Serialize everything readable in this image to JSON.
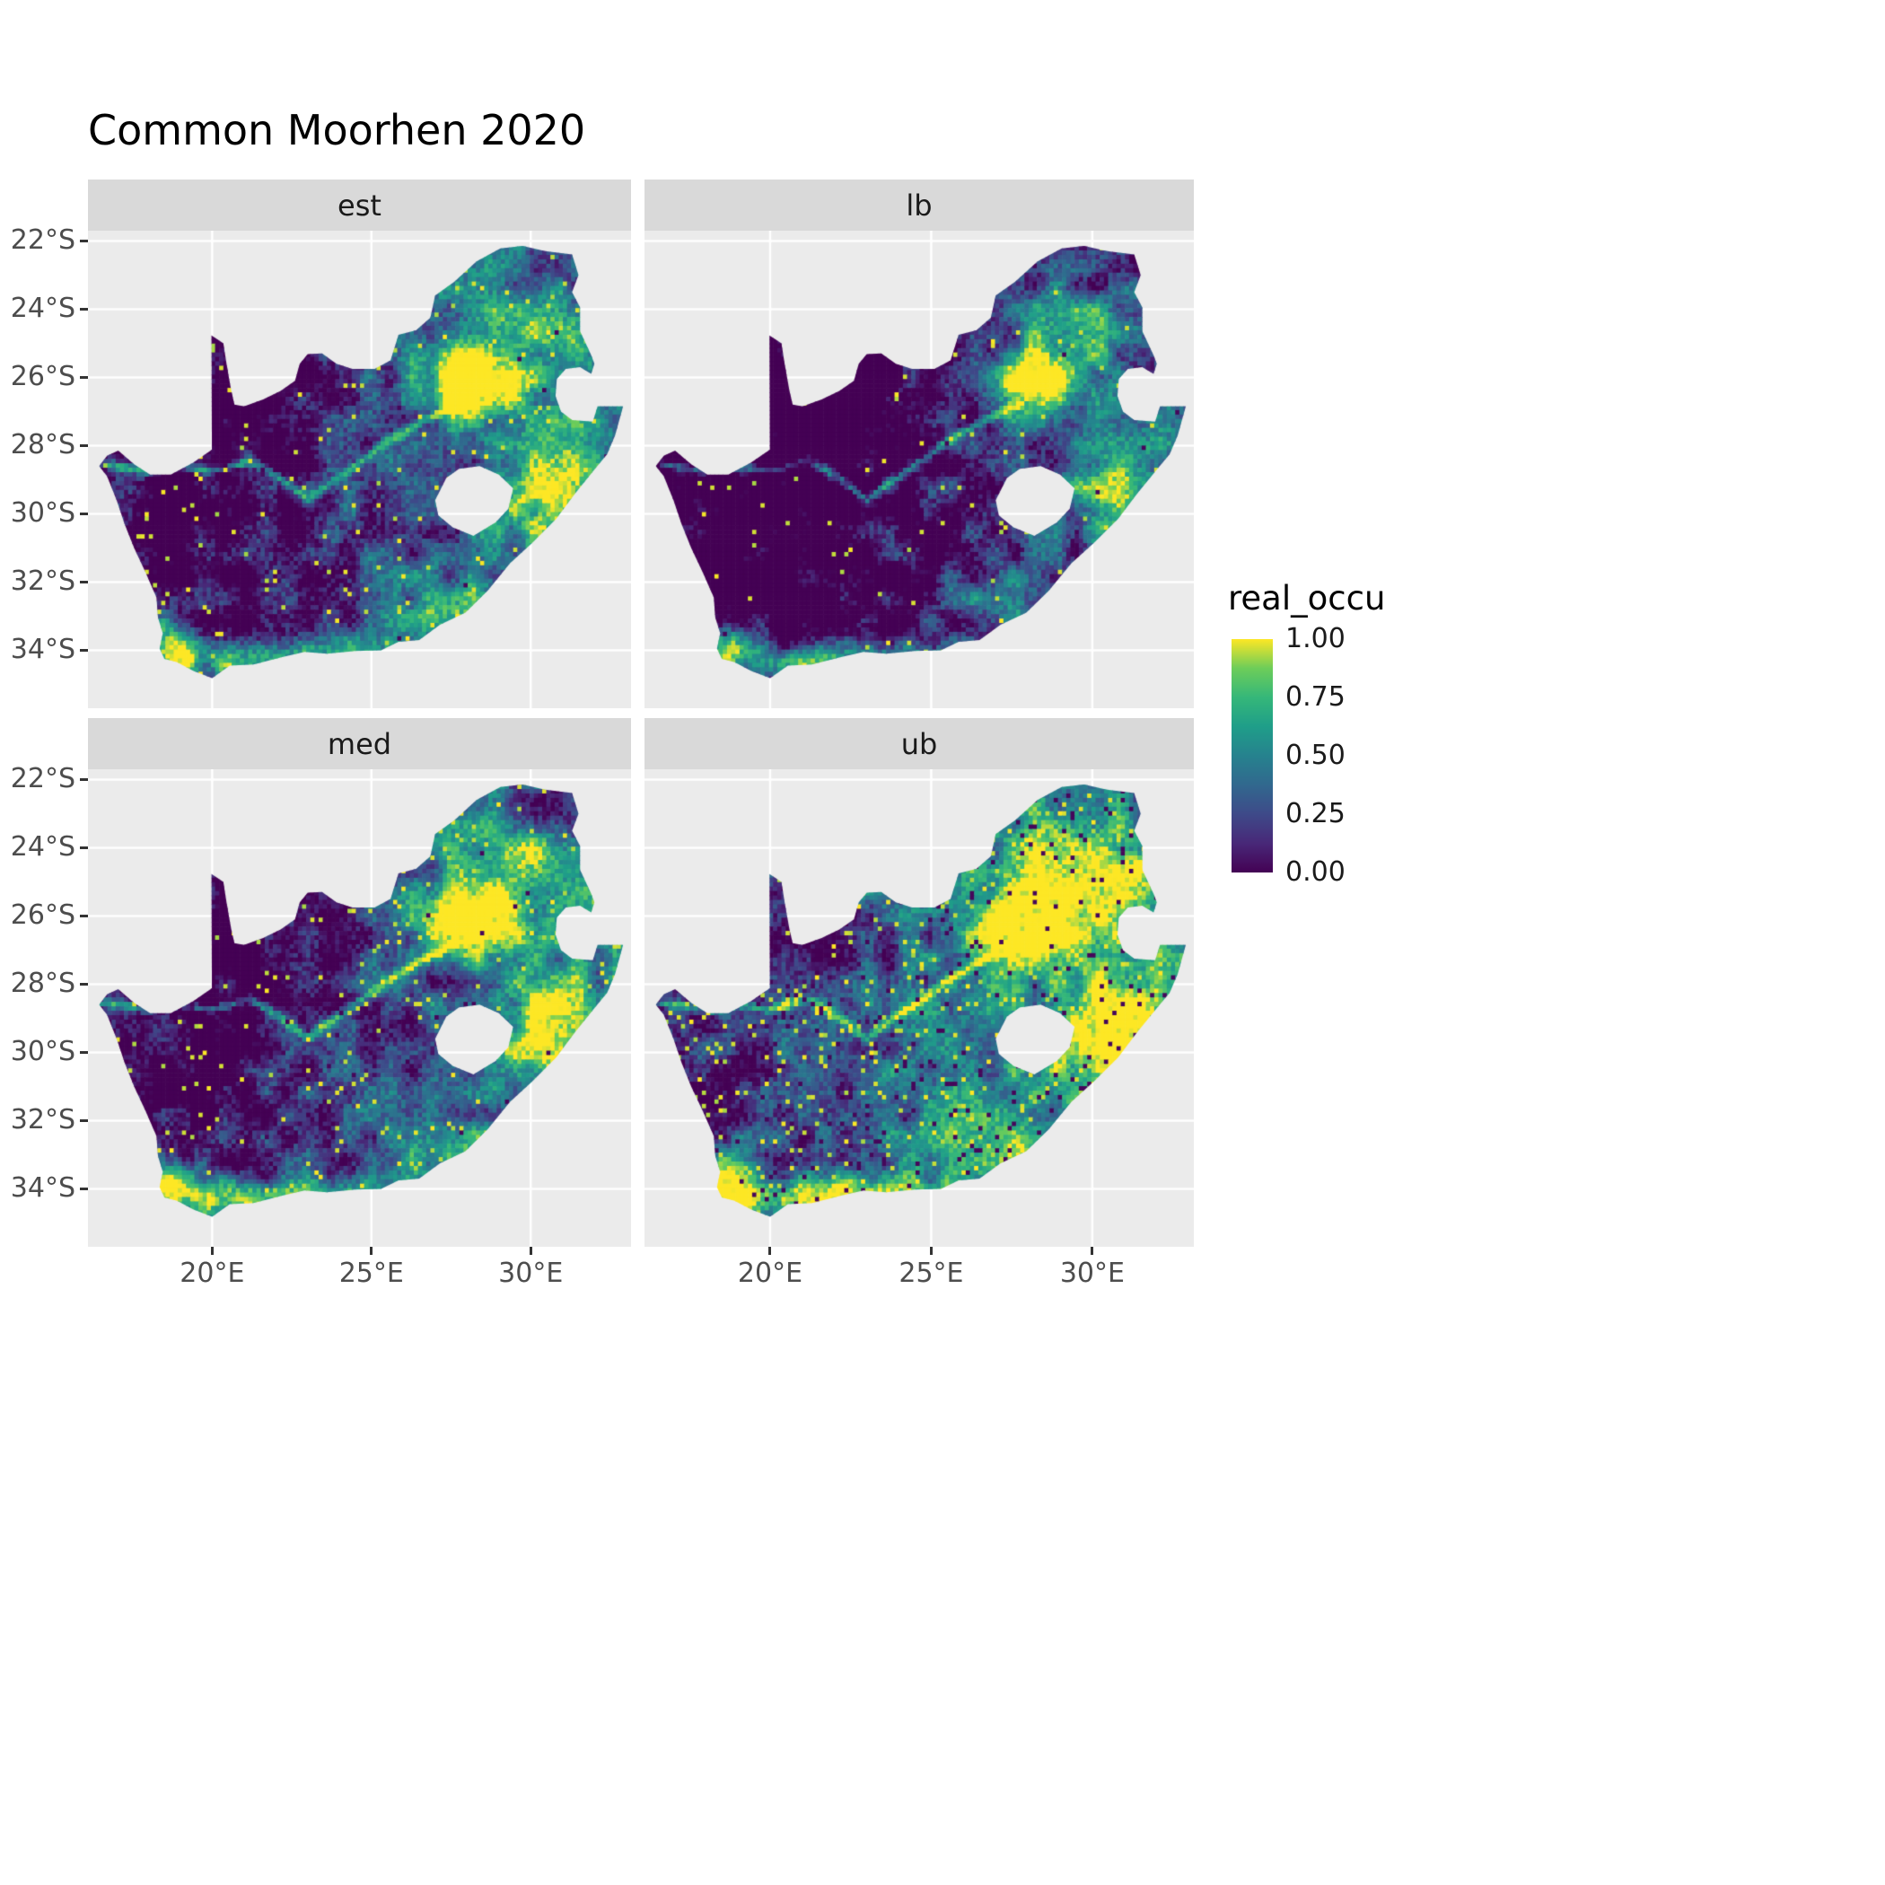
{
  "chart_data": {
    "type": "heatmap",
    "title": "Common Moorhen 2020",
    "variable": "real_occu",
    "facets": [
      {
        "label": "est",
        "bias": 0.0,
        "bright_speckle": 0.02,
        "dark_speckle": 0.002
      },
      {
        "label": "lb",
        "bias": -0.18,
        "bright_speckle": 0.012,
        "dark_speckle": 0.002
      },
      {
        "label": "med",
        "bias": 0.02,
        "bright_speckle": 0.028,
        "dark_speckle": 0.004
      },
      {
        "label": "ub",
        "bias": 0.22,
        "bright_speckle": 0.05,
        "dark_speckle": 0.045
      }
    ],
    "x": {
      "ticks": [
        20,
        25,
        30
      ],
      "tick_labels": [
        "20°E",
        "25°E",
        "30°E"
      ],
      "domain": [
        16.1,
        33.15
      ]
    },
    "y": {
      "ticks": [
        -22,
        -24,
        -26,
        -28,
        -30,
        -32,
        -34
      ],
      "tick_labels": [
        "22°S",
        "24°S",
        "26°S",
        "28°S",
        "30°S",
        "32°S",
        "34°S"
      ],
      "domain": [
        -35.7,
        -21.7
      ]
    },
    "legend": {
      "title": "real_occu",
      "breaks": [
        1.0,
        0.75,
        0.5,
        0.25,
        0.0
      ],
      "labels": [
        "1.00",
        "0.75",
        "0.50",
        "0.25",
        "0.00"
      ],
      "range": [
        0,
        1
      ]
    },
    "palette": {
      "name": "viridis",
      "stops": [
        [
          0,
          "#440154"
        ],
        [
          0.125,
          "#482878"
        ],
        [
          0.25,
          "#3E4A89"
        ],
        [
          0.375,
          "#31688E"
        ],
        [
          0.5,
          "#26828E"
        ],
        [
          0.625,
          "#1F9E89"
        ],
        [
          0.75,
          "#35B779"
        ],
        [
          0.875,
          "#6DCD59"
        ],
        [
          1,
          "#FDE725"
        ]
      ]
    },
    "colors": {
      "panel_bg": "#EBEBEB",
      "strip_bg": "#D9D9D9",
      "strip_text": "#1A1A1A",
      "grid": "#FFFFFF",
      "axis_text": "#4D4D4D",
      "tick": "#333333",
      "title": "#000000",
      "legend_text": "#1A1A1A"
    },
    "map": {
      "cell_deg": 0.13,
      "extent": [
        16.45,
        32.95,
        -34.92,
        -22.02
      ],
      "base": 0.12,
      "east": {
        "from": 22,
        "span": 9,
        "amp": 0.3
      },
      "west": {
        "to": 24,
        "span": 8,
        "amp": 0.15
      },
      "noise": [
        0.55,
        0.3
      ],
      "river_amp": 0.55,
      "river_sigma": 0.13,
      "river": [
        [
          16.6,
          -28.55
        ],
        [
          18.0,
          -28.75
        ],
        [
          19.0,
          -28.6
        ],
        [
          20.0,
          -28.75
        ],
        [
          21.2,
          -28.45
        ],
        [
          22.2,
          -29.0
        ],
        [
          23.0,
          -29.6
        ],
        [
          23.7,
          -29.1
        ],
        [
          24.5,
          -28.6
        ],
        [
          25.5,
          -27.9
        ],
        [
          26.6,
          -27.3
        ],
        [
          27.7,
          -26.8
        ]
      ],
      "bumps": [
        {
          "cx": 28.1,
          "cy": -26.15,
          "sx": 1.5,
          "sy": 1.0,
          "amp": 1.1
        },
        {
          "cx": 29.8,
          "cy": -24.3,
          "sx": 2.2,
          "sy": 1.5,
          "amp": 0.5
        },
        {
          "cx": 30.6,
          "cy": -29.3,
          "sx": 1.5,
          "sy": 1.6,
          "amp": 0.7
        },
        {
          "cx": 27.5,
          "cy": -32.7,
          "sx": 2.0,
          "sy": 1.0,
          "amp": 0.35
        },
        {
          "cx": 22.0,
          "cy": -34.3,
          "sx": 3.5,
          "sy": 0.6,
          "amp": 0.8
        },
        {
          "cx": 18.7,
          "cy": -33.9,
          "sx": 0.9,
          "sy": 0.8,
          "amp": 0.9
        },
        {
          "cx": 21.5,
          "cy": -26.8,
          "sx": 2.6,
          "sy": 1.6,
          "amp": -0.25
        },
        {
          "cx": 30.6,
          "cy": -22.9,
          "sx": 1.6,
          "sy": 1.0,
          "amp": -0.35
        },
        {
          "cx": 19.5,
          "cy": -30.5,
          "sx": 2.2,
          "sy": 2.2,
          "amp": -0.15
        }
      ],
      "outline": [
        [
          16.45,
          -28.6
        ],
        [
          16.7,
          -28.9
        ],
        [
          17.0,
          -29.6
        ],
        [
          17.25,
          -30.3
        ],
        [
          17.55,
          -31.0
        ],
        [
          17.9,
          -31.7
        ],
        [
          18.25,
          -32.45
        ],
        [
          18.3,
          -33.05
        ],
        [
          18.45,
          -33.5
        ],
        [
          18.35,
          -33.95
        ],
        [
          18.5,
          -34.25
        ],
        [
          18.9,
          -34.35
        ],
        [
          19.4,
          -34.6
        ],
        [
          20.0,
          -34.82
        ],
        [
          20.55,
          -34.45
        ],
        [
          21.3,
          -34.42
        ],
        [
          22.2,
          -34.2
        ],
        [
          22.9,
          -34.05
        ],
        [
          23.6,
          -34.1
        ],
        [
          24.5,
          -34.02
        ],
        [
          25.3,
          -34.0
        ],
        [
          25.85,
          -33.75
        ],
        [
          26.5,
          -33.7
        ],
        [
          27.15,
          -33.25
        ],
        [
          27.95,
          -32.9
        ],
        [
          28.65,
          -32.25
        ],
        [
          29.35,
          -31.45
        ],
        [
          30.05,
          -30.85
        ],
        [
          30.8,
          -30.15
        ],
        [
          31.4,
          -29.4
        ],
        [
          32.05,
          -28.65
        ],
        [
          32.4,
          -28.25
        ],
        [
          32.65,
          -27.7
        ],
        [
          32.9,
          -26.85
        ],
        [
          32.1,
          -26.85
        ],
        [
          31.95,
          -27.3
        ],
        [
          31.3,
          -27.25
        ],
        [
          30.95,
          -27.0
        ],
        [
          30.78,
          -26.55
        ],
        [
          30.82,
          -26.05
        ],
        [
          31.1,
          -25.75
        ],
        [
          31.55,
          -25.7
        ],
        [
          31.9,
          -25.9
        ],
        [
          32.0,
          -25.6
        ],
        [
          31.9,
          -25.35
        ],
        [
          31.55,
          -24.65
        ],
        [
          31.55,
          -23.95
        ],
        [
          31.3,
          -23.5
        ],
        [
          31.5,
          -23.0
        ],
        [
          31.3,
          -22.4
        ],
        [
          30.45,
          -22.3
        ],
        [
          29.75,
          -22.15
        ],
        [
          29.05,
          -22.22
        ],
        [
          28.3,
          -22.6
        ],
        [
          27.6,
          -23.2
        ],
        [
          27.0,
          -23.6
        ],
        [
          26.85,
          -24.25
        ],
        [
          26.4,
          -24.62
        ],
        [
          25.85,
          -24.75
        ],
        [
          25.6,
          -25.5
        ],
        [
          25.1,
          -25.75
        ],
        [
          24.4,
          -25.75
        ],
        [
          23.9,
          -25.6
        ],
        [
          23.45,
          -25.3
        ],
        [
          23.0,
          -25.32
        ],
        [
          22.75,
          -25.6
        ],
        [
          22.6,
          -26.1
        ],
        [
          22.15,
          -26.4
        ],
        [
          21.6,
          -26.65
        ],
        [
          21.0,
          -26.85
        ],
        [
          20.7,
          -26.8
        ],
        [
          20.6,
          -26.4
        ],
        [
          20.45,
          -25.6
        ],
        [
          20.35,
          -25.0
        ],
        [
          19.98,
          -24.77
        ],
        [
          19.99,
          -28.12
        ],
        [
          19.4,
          -28.5
        ],
        [
          18.7,
          -28.85
        ],
        [
          18.05,
          -28.85
        ],
        [
          17.55,
          -28.55
        ],
        [
          17.05,
          -28.15
        ],
        [
          16.7,
          -28.3
        ]
      ],
      "lesotho": [
        [
          27.0,
          -29.6
        ],
        [
          27.35,
          -28.95
        ],
        [
          27.75,
          -28.68
        ],
        [
          28.4,
          -28.6
        ],
        [
          29.0,
          -28.85
        ],
        [
          29.45,
          -29.25
        ],
        [
          29.3,
          -29.85
        ],
        [
          28.9,
          -30.25
        ],
        [
          28.2,
          -30.65
        ],
        [
          27.55,
          -30.4
        ],
        [
          27.1,
          -30.05
        ]
      ]
    }
  }
}
